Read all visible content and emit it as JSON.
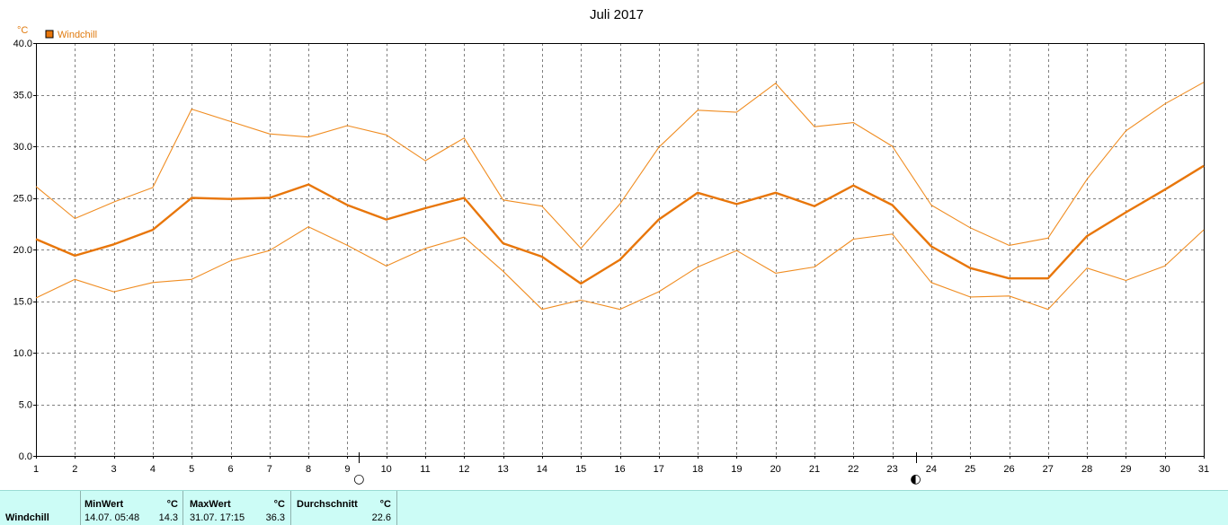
{
  "chart_data": {
    "type": "line",
    "title": "Juli 2017",
    "ylabel": "°C",
    "xlabel": "",
    "x": [
      1,
      2,
      3,
      4,
      5,
      6,
      7,
      8,
      9,
      10,
      11,
      12,
      13,
      14,
      15,
      16,
      17,
      18,
      19,
      20,
      21,
      22,
      23,
      24,
      25,
      26,
      27,
      28,
      29,
      30,
      31
    ],
    "xlim": [
      1,
      31
    ],
    "ylim": [
      0,
      40
    ],
    "yticks": [
      "0.0",
      "5.0",
      "10.0",
      "15.0",
      "20.0",
      "25.0",
      "30.0",
      "35.0",
      "40.0"
    ],
    "grid": true,
    "legend_position": "top-left",
    "moon_phases": [
      {
        "day": 9.3,
        "symbol": "○",
        "name": "full-moon"
      },
      {
        "day": 23.6,
        "symbol": "◐",
        "name": "half-moon"
      }
    ],
    "series": [
      {
        "name": "Windchill",
        "role": "mean",
        "color": "#e8760a",
        "values": [
          21.0,
          19.4,
          20.5,
          21.9,
          25.0,
          24.9,
          25.0,
          26.3,
          24.3,
          22.9,
          24.0,
          25.0,
          20.6,
          19.3,
          16.7,
          19.0,
          22.9,
          25.5,
          24.4,
          25.5,
          24.2,
          26.2,
          24.3,
          20.3,
          18.2,
          17.2,
          17.2,
          21.3,
          23.6,
          25.8,
          28.1
        ]
      },
      {
        "role": "max",
        "color": "#f08d22",
        "values": [
          26.1,
          23.0,
          24.6,
          26.0,
          33.6,
          32.4,
          31.2,
          30.9,
          32.0,
          31.1,
          28.6,
          30.8,
          24.8,
          24.2,
          20.1,
          24.4,
          29.9,
          33.5,
          33.3,
          36.1,
          31.9,
          32.3,
          30.0,
          24.3,
          22.1,
          20.4,
          21.1,
          26.8,
          31.5,
          34.1,
          36.2
        ]
      },
      {
        "role": "min",
        "color": "#f08d22",
        "values": [
          15.3,
          17.1,
          15.9,
          16.8,
          17.1,
          18.9,
          19.9,
          22.2,
          20.4,
          18.4,
          20.1,
          21.2,
          17.9,
          14.2,
          15.1,
          14.2,
          15.9,
          18.3,
          19.9,
          17.7,
          18.3,
          21.0,
          21.5,
          16.8,
          15.4,
          15.5,
          14.2,
          18.2,
          17.0,
          18.4,
          21.9
        ]
      }
    ]
  },
  "stats": {
    "label": "Windchill",
    "min": {
      "header": "MinWert",
      "unit": "°C",
      "datetime": "14.07.  05:48",
      "value": "14.3"
    },
    "max": {
      "header": "MaxWert",
      "unit": "°C",
      "datetime": "31.07.  17:15",
      "value": "36.3"
    },
    "avg": {
      "header": "Durchschnitt",
      "unit": "°C",
      "value": "22.6"
    }
  }
}
